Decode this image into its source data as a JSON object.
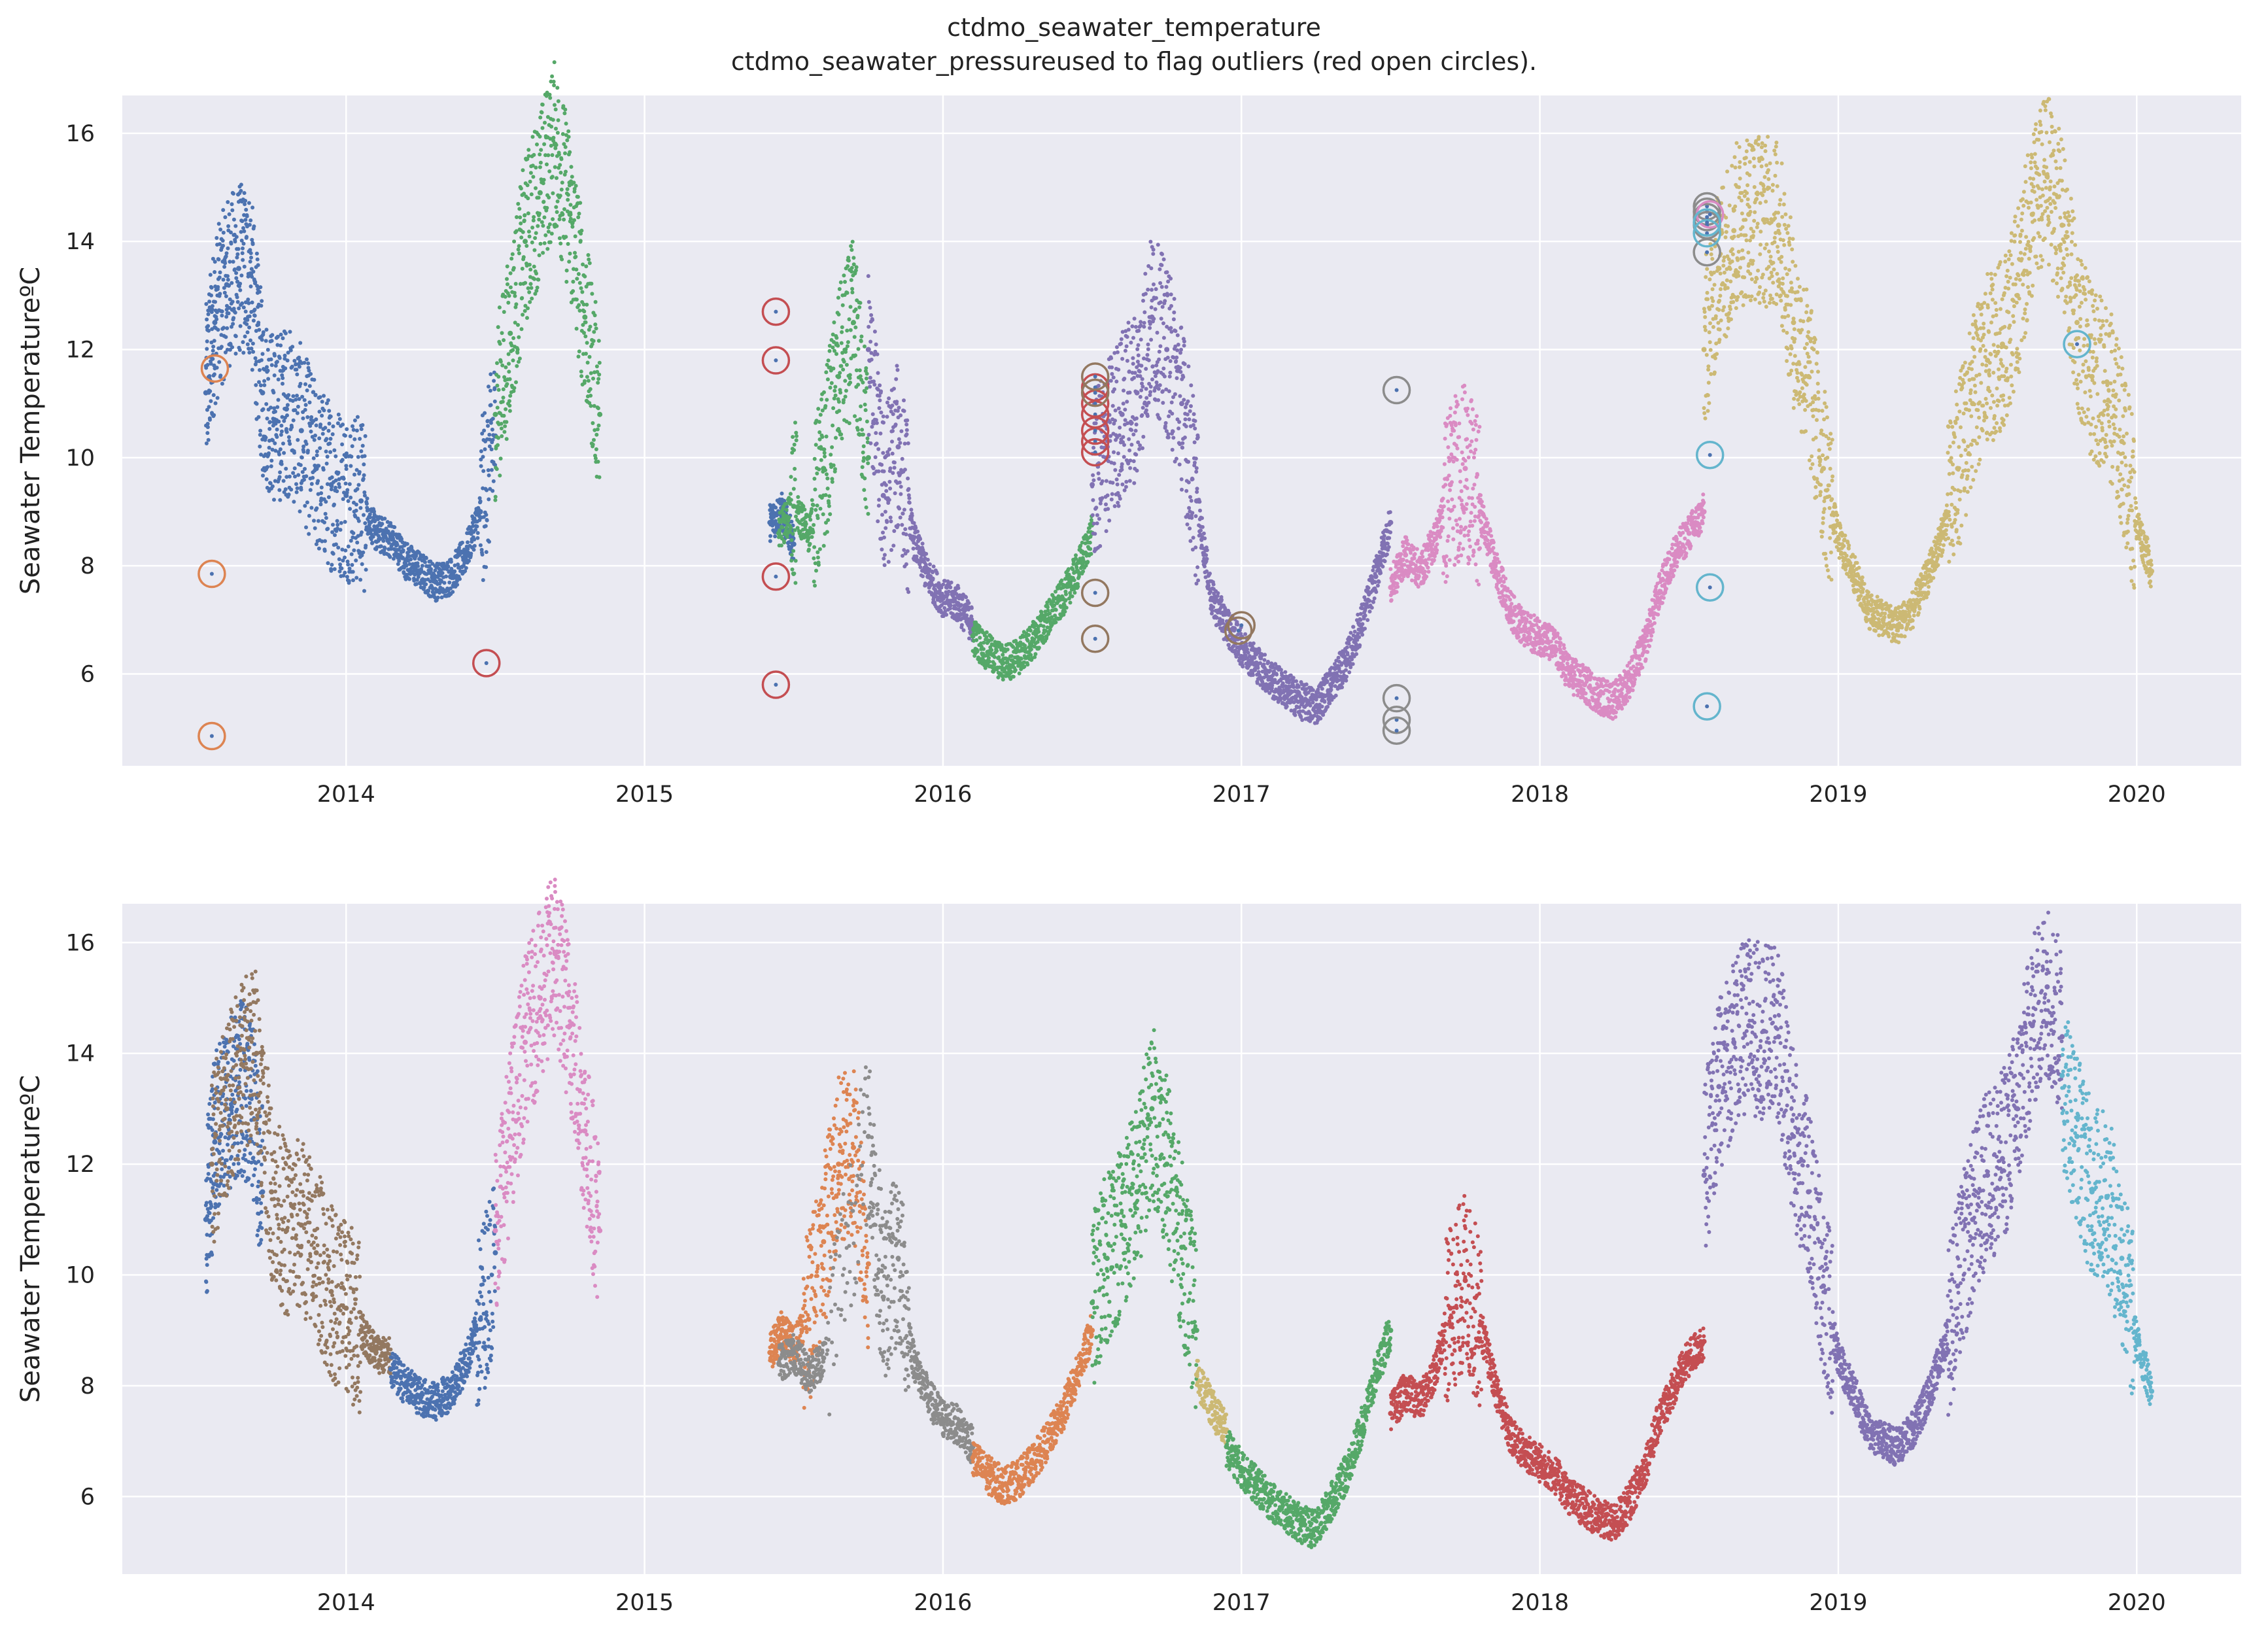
{
  "figure": {
    "title_lines": [
      "ctdmo_seawater_temperature",
      "ctdmo_seawater_pressureused to flag outliers (red open circles)."
    ]
  },
  "colors": {
    "background": "#eaeaf2",
    "grid": "#ffffff",
    "palette": [
      "#4c72b0",
      "#dd8452",
      "#55a868",
      "#c44e52",
      "#8172b3",
      "#937860",
      "#da8bc3",
      "#8c8c8c",
      "#ccb974",
      "#64b5cd"
    ]
  },
  "chart_data": [
    {
      "type": "scatter",
      "title": "",
      "xlabel": "",
      "ylabel": "Seawater TemperatureºC",
      "xlim": [
        2013.25,
        2020.35
      ],
      "ylim": [
        4.3,
        16.7
      ],
      "xticks": [
        "2014",
        "2015",
        "2016",
        "2017",
        "2018",
        "2019",
        "2020"
      ],
      "yticks": [
        "6",
        "8",
        "10",
        "12",
        "14",
        "16"
      ],
      "grid": true,
      "series": [
        {
          "color": "#4c72b0",
          "x": [
            2013.53,
            2013.56,
            2013.6,
            2013.64,
            2013.68,
            2013.72,
            2013.76,
            2013.8,
            2013.85,
            2013.9,
            2013.95,
            2014.0,
            2014.05,
            2014.1,
            2014.15,
            2014.2,
            2014.25,
            2014.3,
            2014.35,
            2014.4,
            2014.45,
            2014.5
          ],
          "y": [
            11.2,
            12.5,
            13.2,
            13.5,
            13.4,
            11.2,
            10.7,
            10.9,
            10.5,
            9.8,
            9.5,
            9.3,
            9.2,
            8.6,
            8.5,
            8.1,
            7.9,
            7.7,
            7.8,
            8.2,
            9.0,
            10.4
          ]
        },
        {
          "color": "#55a868",
          "x": [
            2014.5,
            2014.55,
            2014.6,
            2014.65,
            2014.7,
            2014.75,
            2014.8,
            2014.85
          ],
          "y": [
            10.8,
            12.3,
            14.0,
            14.9,
            15.8,
            14.5,
            12.6,
            10.8
          ]
        },
        {
          "color": "#4c72b0",
          "x": [
            2015.42,
            2015.46,
            2015.5
          ],
          "y": [
            8.8,
            9.0,
            8.4
          ]
        },
        {
          "color": "#55a868",
          "x": [
            2015.45,
            2015.5,
            2015.55,
            2015.6,
            2015.65,
            2015.7,
            2015.75
          ],
          "y": [
            8.6,
            9.1,
            8.6,
            9.8,
            11.5,
            12.5,
            10.0
          ]
        },
        {
          "color": "#8172b3",
          "x": [
            2015.75,
            2015.8,
            2015.85,
            2015.9,
            2015.95,
            2016.0,
            2016.05,
            2016.1
          ],
          "y": [
            12.0,
            9.3,
            10.2,
            8.5,
            7.8,
            7.4,
            7.3,
            6.9
          ]
        },
        {
          "color": "#55a868",
          "x": [
            2016.1,
            2016.15,
            2016.2,
            2016.25,
            2016.3,
            2016.35,
            2016.4,
            2016.45,
            2016.5
          ],
          "y": [
            6.7,
            6.4,
            6.2,
            6.3,
            6.6,
            7.0,
            7.4,
            7.9,
            8.6
          ]
        },
        {
          "color": "#8172b3",
          "x": [
            2016.5,
            2016.55,
            2016.6,
            2016.65,
            2016.7,
            2016.75,
            2016.8,
            2016.85,
            2016.9,
            2016.95,
            2017.0,
            2017.05,
            2017.1,
            2017.15,
            2017.2,
            2017.25,
            2017.3,
            2017.35,
            2017.4,
            2017.45,
            2017.5
          ],
          "y": [
            9.5,
            10.2,
            10.8,
            11.2,
            12.6,
            12.0,
            11.0,
            9.2,
            7.4,
            6.9,
            6.5,
            6.2,
            5.9,
            5.7,
            5.5,
            5.4,
            5.8,
            6.2,
            6.9,
            7.8,
            8.8
          ]
        },
        {
          "color": "#da8bc3",
          "x": [
            2017.5,
            2017.55,
            2017.6,
            2017.65,
            2017.7,
            2017.75,
            2017.8,
            2017.85,
            2017.9,
            2017.95,
            2018.0,
            2018.05,
            2018.1,
            2018.15,
            2018.2,
            2018.25,
            2018.3,
            2018.35,
            2018.4,
            2018.45,
            2018.5,
            2018.55
          ],
          "y": [
            7.6,
            8.2,
            7.9,
            8.5,
            9.5,
            9.8,
            9.0,
            8.0,
            7.2,
            6.8,
            6.7,
            6.5,
            6.0,
            5.8,
            5.6,
            5.5,
            5.9,
            6.5,
            7.5,
            8.2,
            8.6,
            9.0
          ]
        },
        {
          "color": "#ccb974",
          "x": [
            2018.55,
            2018.6,
            2018.65,
            2018.7,
            2018.75,
            2018.8,
            2018.85,
            2018.9,
            2018.95,
            2019.0,
            2019.05,
            2019.1,
            2019.15,
            2019.2,
            2019.25,
            2019.3,
            2019.35,
            2019.4,
            2019.45,
            2019.5,
            2019.55,
            2019.6,
            2019.65,
            2019.7,
            2019.75,
            2019.8,
            2019.85,
            2019.9,
            2019.95,
            2020.0,
            2020.05
          ],
          "y": [
            12.0,
            13.5,
            14.2,
            14.5,
            14.4,
            14.3,
            12.5,
            11.5,
            9.8,
            8.5,
            7.9,
            7.2,
            7.0,
            6.9,
            7.2,
            7.8,
            8.6,
            9.8,
            11.0,
            11.8,
            12.1,
            13.0,
            14.5,
            15.2,
            14.3,
            12.5,
            11.5,
            11.4,
            10.3,
            8.8,
            7.9
          ]
        }
      ],
      "outliers": [
        {
          "color": "#dd8452",
          "x": [
            2013.56,
            2013.55,
            2013.55
          ],
          "y": [
            11.65,
            7.85,
            4.85
          ]
        },
        {
          "color": "#c44e52",
          "x": [
            2014.47,
            2015.44,
            2015.44,
            2015.44,
            2015.44,
            2016.51,
            2016.51,
            2016.51,
            2016.51,
            2016.51,
            2016.51
          ],
          "y": [
            6.2,
            12.7,
            11.8,
            7.8,
            5.8,
            10.1,
            10.3,
            10.5,
            10.8,
            11.0,
            11.3
          ]
        },
        {
          "color": "#937860",
          "x": [
            2016.51,
            2016.51,
            2016.51,
            2016.51,
            2016.99,
            2017.0
          ],
          "y": [
            11.5,
            11.2,
            7.5,
            6.65,
            6.8,
            6.9
          ]
        },
        {
          "color": "#8c8c8c",
          "x": [
            2017.52,
            2017.52,
            2017.52,
            2017.52,
            2018.56,
            2018.56,
            2018.56,
            2018.56,
            2018.56
          ],
          "y": [
            11.25,
            5.55,
            5.15,
            4.95,
            14.65,
            14.55,
            14.45,
            14.3,
            13.8
          ]
        },
        {
          "color": "#da8bc3",
          "x": [
            2018.57
          ],
          "y": [
            14.5
          ]
        },
        {
          "color": "#64b5cd",
          "x": [
            2018.56,
            2018.56,
            2018.57,
            2018.57,
            2018.56,
            2019.8
          ],
          "y": [
            14.15,
            14.35,
            10.05,
            7.6,
            5.4,
            12.1
          ]
        }
      ]
    },
    {
      "type": "scatter",
      "title": "",
      "xlabel": "",
      "ylabel": "Seawater TemperatureºC",
      "xlim": [
        2013.25,
        2020.35
      ],
      "ylim": [
        4.6,
        16.7
      ],
      "xticks": [
        "2014",
        "2015",
        "2016",
        "2017",
        "2018",
        "2019",
        "2020"
      ],
      "yticks": [
        "6",
        "8",
        "10",
        "12",
        "14",
        "16"
      ],
      "grid": true,
      "series": [
        {
          "color": "#4c72b0",
          "x": [
            2013.53,
            2013.56,
            2013.6,
            2013.64,
            2013.68,
            2013.72
          ],
          "y": [
            11.0,
            12.4,
            13.0,
            13.4,
            13.2,
            11.5
          ]
        },
        {
          "color": "#937860",
          "x": [
            2013.55,
            2013.6,
            2013.65,
            2013.7,
            2013.75,
            2013.8,
            2013.85,
            2013.9,
            2013.95,
            2014.0,
            2014.05,
            2014.1,
            2014.15
          ],
          "y": [
            12.0,
            13.0,
            13.8,
            14.0,
            11.5,
            10.8,
            10.9,
            10.4,
            9.7,
            9.4,
            9.0,
            8.6,
            8.5
          ]
        },
        {
          "color": "#4c72b0",
          "x": [
            2014.15,
            2014.2,
            2014.25,
            2014.3,
            2014.35,
            2014.4,
            2014.45,
            2014.5
          ],
          "y": [
            8.3,
            8.0,
            7.8,
            7.7,
            7.9,
            8.4,
            9.2,
            10.4
          ]
        },
        {
          "color": "#da8bc3",
          "x": [
            2014.5,
            2014.55,
            2014.6,
            2014.65,
            2014.7,
            2014.75,
            2014.8,
            2014.85
          ],
          "y": [
            10.8,
            12.5,
            14.2,
            15.0,
            15.8,
            14.5,
            12.6,
            10.8
          ]
        },
        {
          "color": "#dd8452",
          "x": [
            2015.42,
            2015.46,
            2015.5,
            2015.55,
            2015.6,
            2015.65,
            2015.7,
            2015.75
          ],
          "y": [
            8.6,
            9.0,
            8.7,
            9.2,
            10.6,
            12.0,
            12.3,
            10.2
          ]
        },
        {
          "color": "#8c8c8c",
          "x": [
            2015.45,
            2015.5,
            2015.55,
            2015.6,
            2015.75,
            2015.8,
            2015.85,
            2015.9,
            2015.95,
            2016.0,
            2016.05,
            2016.1
          ],
          "y": [
            8.4,
            8.6,
            8.2,
            8.5,
            12.5,
            9.6,
            10.3,
            8.5,
            7.8,
            7.4,
            7.3,
            6.9
          ]
        },
        {
          "color": "#dd8452",
          "x": [
            2016.1,
            2016.15,
            2016.2,
            2016.25,
            2016.3,
            2016.35,
            2016.4,
            2016.45,
            2016.5
          ],
          "y": [
            6.7,
            6.4,
            6.2,
            6.3,
            6.6,
            7.0,
            7.5,
            8.2,
            9.0
          ]
        },
        {
          "color": "#55a868",
          "x": [
            2016.5,
            2016.55,
            2016.6,
            2016.65,
            2016.7,
            2016.75,
            2016.8,
            2016.85
          ],
          "y": [
            9.5,
            10.3,
            10.9,
            11.5,
            13.0,
            12.0,
            10.5,
            9.0
          ]
        },
        {
          "color": "#ccb974",
          "x": [
            2016.85,
            2016.9,
            2016.95
          ],
          "y": [
            8.2,
            7.6,
            7.2
          ]
        },
        {
          "color": "#55a868",
          "x": [
            2016.95,
            2017.0,
            2017.05,
            2017.1,
            2017.15,
            2017.2,
            2017.25,
            2017.3,
            2017.35,
            2017.4,
            2017.45,
            2017.5
          ],
          "y": [
            6.9,
            6.5,
            6.2,
            5.9,
            5.7,
            5.5,
            5.4,
            5.9,
            6.4,
            7.2,
            8.2,
            9.0
          ]
        },
        {
          "color": "#c44e52",
          "x": [
            2017.5,
            2017.55,
            2017.6,
            2017.65,
            2017.7,
            2017.75,
            2017.8,
            2017.85,
            2017.9,
            2017.95,
            2018.0,
            2018.05,
            2018.1,
            2018.15,
            2018.2,
            2018.25,
            2018.3,
            2018.35,
            2018.4,
            2018.45,
            2018.5,
            2018.55
          ],
          "y": [
            7.5,
            7.9,
            7.7,
            8.3,
            9.4,
            9.9,
            9.1,
            8.0,
            7.1,
            6.8,
            6.6,
            6.4,
            6.0,
            5.8,
            5.6,
            5.5,
            5.9,
            6.5,
            7.4,
            8.0,
            8.5,
            8.8
          ]
        },
        {
          "color": "#8172b3",
          "x": [
            2018.55,
            2018.6,
            2018.65,
            2018.7,
            2018.75,
            2018.8,
            2018.85,
            2018.9,
            2018.95,
            2019.0,
            2019.05,
            2019.1,
            2019.15,
            2019.2,
            2019.25,
            2019.3,
            2019.35,
            2019.4,
            2019.45,
            2019.5,
            2019.55,
            2019.6,
            2019.65,
            2019.7,
            2019.75
          ],
          "y": [
            11.8,
            13.4,
            14.2,
            14.5,
            14.4,
            14.3,
            12.5,
            11.5,
            9.8,
            8.5,
            7.9,
            7.2,
            7.0,
            6.9,
            7.2,
            7.8,
            8.6,
            9.8,
            11.0,
            11.8,
            12.1,
            13.0,
            14.5,
            15.2,
            14.3
          ]
        },
        {
          "color": "#64b5cd",
          "x": [
            2019.75,
            2019.8,
            2019.85,
            2019.9,
            2019.95,
            2020.0,
            2020.05
          ],
          "y": [
            13.6,
            12.5,
            11.5,
            11.4,
            10.3,
            8.8,
            7.9
          ]
        }
      ]
    }
  ]
}
